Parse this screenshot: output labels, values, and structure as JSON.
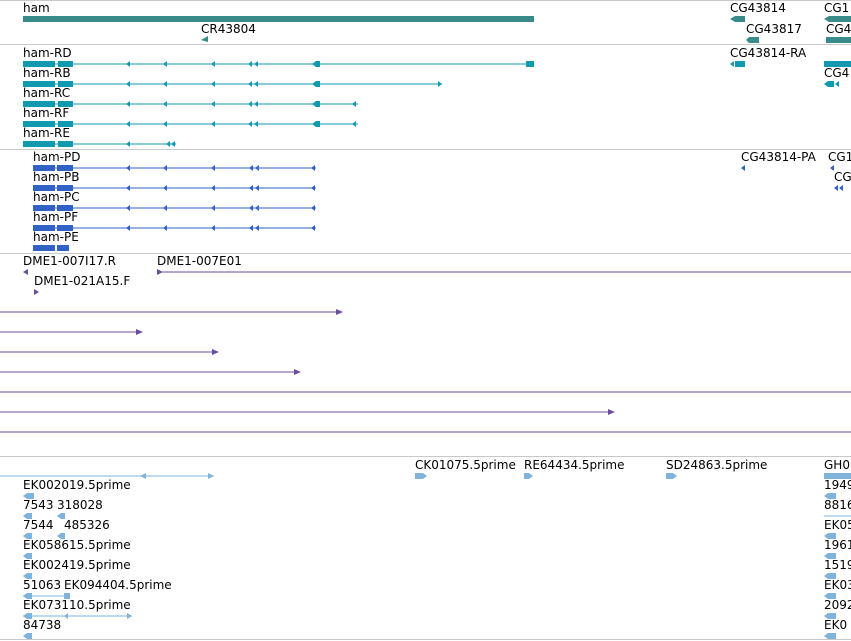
{
  "colors": {
    "gene": "#3a8c8c",
    "transcript": "#1199b0",
    "protein": "#2f62c4",
    "clone": "#6b4ea0",
    "est": "#7fb3d9",
    "separator": "#c8c8c8"
  },
  "tracks": {
    "genes": {
      "labels": [
        "ham",
        "CR43804",
        "CG43814",
        "CG43817",
        "CG1",
        "CG4"
      ]
    },
    "transcripts": {
      "labels": [
        "ham-RD",
        "ham-RB",
        "ham-RC",
        "ham-RF",
        "ham-RE",
        "CG43814-RA",
        "CG4"
      ]
    },
    "proteins": {
      "labels": [
        "ham-PD",
        "ham-PB",
        "ham-PC",
        "ham-PF",
        "ham-PE",
        "CG43814-PA",
        "CG1",
        "CG"
      ]
    },
    "clones": {
      "labels": [
        "DME1-007I17.R",
        "DME1-007E01",
        "DME1-021A15.F"
      ]
    },
    "ests": {
      "labels": [
        "EK002019.5prime",
        "7543",
        "318028",
        "7544",
        "485326",
        "EK058615.5prime",
        "EK002419.5prime",
        "51063",
        "EK094404.5prime",
        "EK073110.5prime",
        "84738",
        "CK01075.5prime",
        "RE64434.5prime",
        "SD24863.5prime",
        "GH0",
        "1949",
        "8816",
        "EK05",
        "1961",
        "1519",
        "EK03",
        "2092",
        "EK0"
      ]
    }
  }
}
